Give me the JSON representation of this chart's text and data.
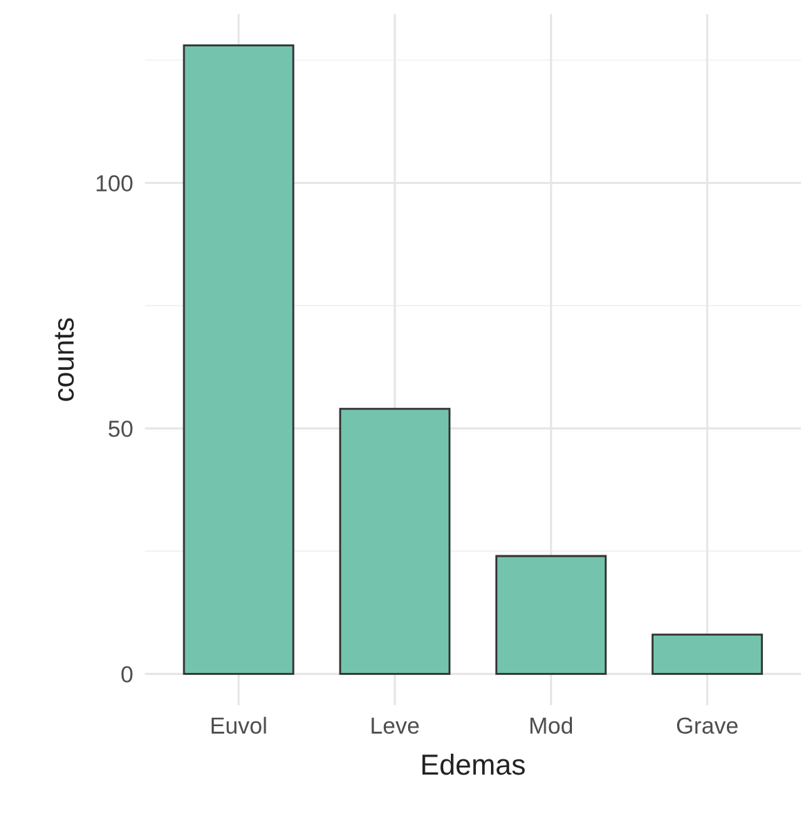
{
  "chart_data": {
    "type": "bar",
    "xlabel": "Edemas",
    "ylabel": "counts",
    "categories": [
      "Euvol",
      "Leve",
      "Mod",
      "Grave"
    ],
    "values": [
      128,
      54,
      24,
      8
    ],
    "color": "#74c4ad",
    "ylim": [
      -6.4,
      134.4
    ],
    "yticks": [
      0,
      50,
      100
    ],
    "grid": true
  }
}
